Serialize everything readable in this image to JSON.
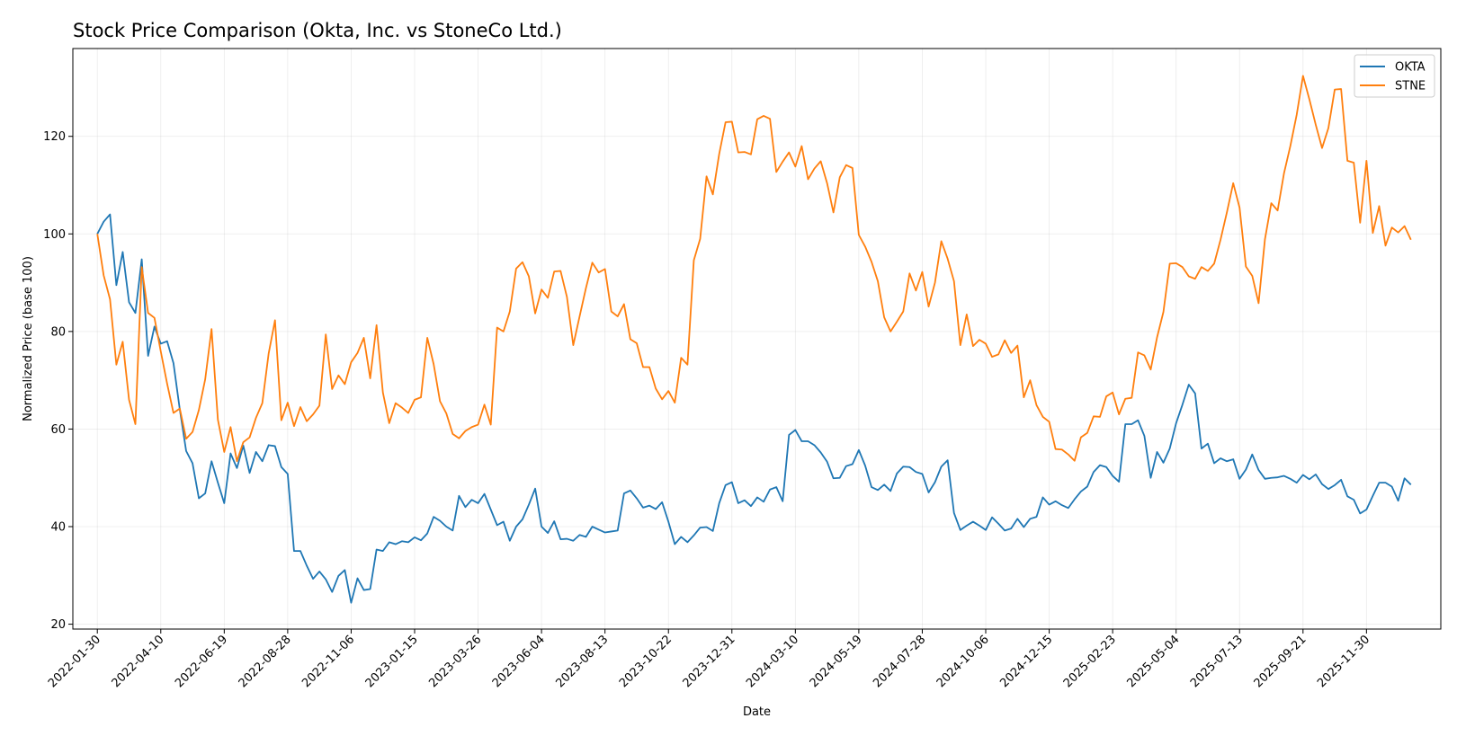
{
  "chart_data": {
    "type": "line",
    "title": "Stock Price Comparison (Okta, Inc. vs StoneCo Ltd.)",
    "xlabel": "Date",
    "ylabel": "Normalized Price (base 100)",
    "ylim": [
      19,
      138
    ],
    "xlim": [
      "2022-01-03",
      "2026-02-20"
    ],
    "yticks": [
      20,
      40,
      60,
      80,
      100,
      120
    ],
    "xticks": [
      "2022-01-30",
      "2022-04-10",
      "2022-06-19",
      "2022-08-28",
      "2022-11-06",
      "2023-01-15",
      "2023-03-26",
      "2023-06-04",
      "2023-08-13",
      "2023-10-22",
      "2023-12-31",
      "2024-03-10",
      "2024-05-19",
      "2024-07-28",
      "2024-10-06",
      "2024-12-15",
      "2025-02-23",
      "2025-05-04",
      "2025-07-13",
      "2025-09-21",
      "2025-11-30"
    ],
    "grid": true,
    "legend": "top-right",
    "x_start": "2022-01-30",
    "x_step_days": 7,
    "series": [
      {
        "name": "OKTA",
        "color": "#1f77b4",
        "values": [
          100,
          102.5,
          104,
          89.5,
          96.3,
          86,
          83.8,
          94.8,
          75,
          81,
          77.5,
          78,
          73.5,
          64,
          55.5,
          53,
          45.8,
          46.8,
          53.4,
          49,
          44.8,
          55,
          52,
          56.6,
          51,
          55.3,
          53.4,
          56.7,
          56.5,
          52.2,
          50.8,
          35,
          35,
          32,
          29.3,
          30.8,
          29.2,
          26.6,
          29.9,
          31.1,
          24.4,
          29.4,
          27,
          27.2,
          35.3,
          35,
          36.8,
          36.4,
          37,
          36.8,
          37.8,
          37.2,
          38.6,
          42,
          41.2,
          40,
          39.2,
          46.3,
          44,
          45.5,
          44.8,
          46.7,
          43.5,
          40.3,
          41,
          37.1,
          40,
          41.5,
          44.5,
          47.8,
          40,
          38.7,
          41.1,
          37.4,
          37.5,
          37.1,
          38.3,
          37.9,
          40,
          39.4,
          38.8,
          39,
          39.2,
          46.8,
          47.4,
          45.8,
          43.9,
          44.3,
          43.6,
          45,
          41,
          36.4,
          37.9,
          36.8,
          38.2,
          39.8,
          39.9,
          39.1,
          44.8,
          48.5,
          49.1,
          44.8,
          45.4,
          44.2,
          46,
          45.1,
          47.6,
          48.1,
          45.2,
          58.8,
          59.8,
          57.5,
          57.5,
          56.7,
          55.2,
          53.3,
          49.9,
          50,
          52.4,
          52.8,
          55.7,
          52.5,
          48.1,
          47.5,
          48.6,
          47.3,
          50.9,
          52.3,
          52.2,
          51.2,
          50.8,
          47,
          49.1,
          52.3,
          53.6,
          42.8,
          39.3,
          40.2,
          41,
          40.2,
          39.3,
          41.9,
          40.6,
          39.2,
          39.6,
          41.6,
          39.9,
          41.6,
          42,
          46,
          44.5,
          45.2,
          44.4,
          43.8,
          45.6,
          47.2,
          48.2,
          51.2,
          52.6,
          52.2,
          50.4,
          49.2,
          61,
          61,
          61.8,
          58.6,
          50,
          55.3,
          53.1,
          56,
          61.2,
          65,
          69.1,
          67.3,
          56,
          57,
          53,
          54,
          53.4,
          53.8,
          49.8,
          51.7,
          54.8,
          51.6,
          49.8,
          50,
          50.1,
          50.4,
          49.8,
          49,
          50.6,
          49.7,
          50.7,
          48.7,
          47.7,
          48.5,
          49.6,
          46.2,
          45.5,
          42.7,
          43.5,
          46.3,
          49,
          49,
          48.2,
          45.3,
          49.9,
          48.6
        ]
      },
      {
        "name": "STNE",
        "color": "#ff7f0e",
        "values": [
          100,
          91.5,
          86.6,
          73.2,
          77.9,
          66,
          61,
          93.2,
          83.8,
          82.8,
          75.9,
          69.3,
          63.3,
          64.2,
          58,
          59.4,
          63.9,
          70.2,
          80.5,
          61.9,
          55.3,
          60.4,
          53.4,
          57.3,
          58.3,
          62.3,
          65.3,
          75.5,
          82.3,
          61.8,
          65.4,
          60.6,
          64.5,
          61.6,
          63,
          64.8,
          79.4,
          68.2,
          71,
          69.2,
          73.7,
          75.6,
          78.7,
          70.4,
          81.3,
          67.5,
          61.2,
          65.3,
          64.4,
          63.3,
          66,
          66.5,
          78.7,
          73.3,
          65.7,
          63.2,
          59,
          58.1,
          59.6,
          60.4,
          60.9,
          65,
          60.9,
          80.8,
          80,
          84.1,
          92.9,
          94.2,
          91.3,
          83.7,
          88.6,
          86.9,
          92.3,
          92.4,
          87.1,
          77.2,
          83.1,
          88.9,
          94.1,
          92.1,
          92.8,
          84.1,
          83.1,
          85.6,
          78.4,
          77.6,
          72.7,
          72.7,
          68.3,
          66.1,
          67.8,
          65.4,
          74.6,
          73.2,
          94.6,
          99,
          111.8,
          108.1,
          116.4,
          122.9,
          123,
          116.7,
          116.8,
          116.3,
          123.5,
          124.2,
          123.6,
          112.7,
          114.8,
          116.7,
          113.8,
          118,
          111.2,
          113.4,
          114.9,
          110.4,
          104.4,
          111.6,
          114.1,
          113.5,
          99.8,
          97.4,
          94.3,
          90.3,
          82.9,
          80,
          82,
          84.1,
          91.9,
          88.4,
          92.2,
          85.1,
          90,
          98.5,
          94.9,
          90.3,
          77.2,
          83.5,
          77,
          78.3,
          77.5,
          74.8,
          75.3,
          78.2,
          75.6,
          77.1,
          66.5,
          70,
          64.9,
          62.5,
          61.5,
          55.9,
          55.8,
          54.8,
          53.5,
          58.3,
          59.2,
          62.6,
          62.5,
          66.7,
          67.5,
          63,
          66.2,
          66.4,
          75.7,
          75.1,
          72.2,
          78.8,
          84,
          93.9,
          94,
          93.2,
          91.3,
          90.8,
          93.2,
          92.4,
          93.9,
          98.8,
          104.4,
          110.4,
          105.4,
          93.3,
          91.4,
          85.8,
          98.9,
          106.3,
          104.8,
          112.4,
          118,
          124.4,
          132.4,
          127.6,
          122.4,
          117.6,
          121.7,
          129.6,
          129.7,
          115,
          114.6,
          102.3,
          115,
          100.2,
          105.7,
          97.6,
          101.3,
          100.3,
          101.6,
          98.8
        ]
      }
    ]
  }
}
